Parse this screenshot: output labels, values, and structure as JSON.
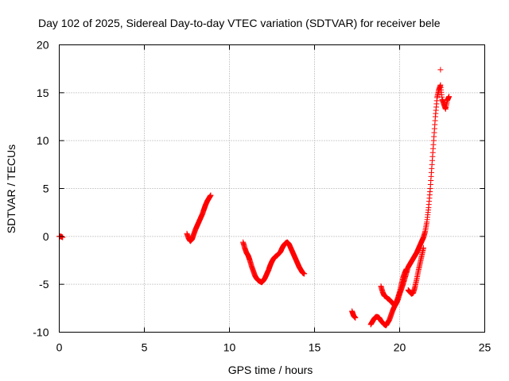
{
  "chart_data": {
    "type": "scatter",
    "title": "Day 102 of 2025, Sidereal Day-to-day VTEC variation (SDTVAR) for receiver bele",
    "xlabel": "GPS time / hours",
    "ylabel": "SDTVAR / TECUs",
    "xlim": [
      0,
      25
    ],
    "ylim": [
      -10,
      20
    ],
    "xticks": [
      0,
      5,
      10,
      15,
      20,
      25
    ],
    "yticks": [
      -10,
      -5,
      0,
      5,
      10,
      15,
      20
    ],
    "grid": true,
    "marker": "+",
    "color": "#ff0000",
    "series": [
      {
        "name": "SDTVAR",
        "segments": [
          [
            [
              0.0,
              0.0
            ],
            [
              0.1,
              0.0
            ],
            [
              0.2,
              -0.1
            ]
          ],
          [
            [
              7.5,
              0.3
            ],
            [
              7.6,
              -0.2
            ],
            [
              7.7,
              -0.5
            ],
            [
              7.8,
              -0.3
            ],
            [
              7.9,
              0.2
            ],
            [
              8.0,
              0.7
            ],
            [
              8.1,
              1.1
            ],
            [
              8.2,
              1.5
            ],
            [
              8.3,
              1.9
            ],
            [
              8.4,
              2.3
            ],
            [
              8.5,
              2.8
            ],
            [
              8.6,
              3.3
            ],
            [
              8.7,
              3.7
            ],
            [
              8.8,
              4.0
            ],
            [
              8.9,
              4.3
            ]
          ],
          [
            [
              10.8,
              -0.6
            ],
            [
              10.9,
              -1.2
            ],
            [
              11.0,
              -1.7
            ],
            [
              11.1,
              -2.0
            ],
            [
              11.2,
              -2.5
            ],
            [
              11.3,
              -3.1
            ],
            [
              11.4,
              -3.6
            ],
            [
              11.5,
              -4.1
            ],
            [
              11.6,
              -4.4
            ],
            [
              11.7,
              -4.6
            ],
            [
              11.8,
              -4.7
            ],
            [
              11.9,
              -4.8
            ],
            [
              12.0,
              -4.6
            ],
            [
              12.1,
              -4.3
            ],
            [
              12.2,
              -3.9
            ],
            [
              12.3,
              -3.5
            ],
            [
              12.4,
              -3.0
            ],
            [
              12.5,
              -2.6
            ],
            [
              12.6,
              -2.3
            ],
            [
              12.7,
              -2.1
            ],
            [
              12.8,
              -2.0
            ],
            [
              12.9,
              -1.8
            ],
            [
              13.0,
              -1.6
            ],
            [
              13.1,
              -1.2
            ],
            [
              13.2,
              -0.9
            ],
            [
              13.3,
              -0.7
            ],
            [
              13.4,
              -0.6
            ],
            [
              13.5,
              -0.8
            ],
            [
              13.6,
              -1.2
            ],
            [
              13.7,
              -1.6
            ],
            [
              13.8,
              -2.0
            ],
            [
              13.9,
              -2.4
            ],
            [
              14.0,
              -2.8
            ],
            [
              14.1,
              -3.2
            ],
            [
              14.2,
              -3.5
            ],
            [
              14.3,
              -3.8
            ],
            [
              14.4,
              -3.9
            ]
          ],
          [
            [
              17.2,
              -7.8
            ],
            [
              17.3,
              -8.3
            ],
            [
              17.4,
              -8.5
            ]
          ],
          [
            [
              18.3,
              -9.2
            ],
            [
              18.4,
              -8.9
            ],
            [
              18.5,
              -8.6
            ],
            [
              18.6,
              -8.4
            ],
            [
              18.7,
              -8.4
            ],
            [
              18.8,
              -8.5
            ],
            [
              18.9,
              -8.8
            ],
            [
              19.0,
              -9.0
            ],
            [
              19.1,
              -9.2
            ],
            [
              19.2,
              -9.3
            ],
            [
              19.3,
              -9.0
            ],
            [
              19.4,
              -8.7
            ],
            [
              19.5,
              -8.2
            ],
            [
              19.6,
              -7.7
            ],
            [
              19.7,
              -7.3
            ],
            [
              19.8,
              -7.0
            ],
            [
              19.9,
              -6.6
            ],
            [
              20.0,
              -6.0
            ],
            [
              20.1,
              -5.5
            ],
            [
              20.2,
              -5.0
            ],
            [
              20.3,
              -4.4
            ],
            [
              20.4,
              -3.8
            ],
            [
              20.5,
              -3.2
            ],
            [
              20.6,
              -2.9
            ],
            [
              20.7,
              -2.6
            ],
            [
              20.8,
              -2.3
            ],
            [
              20.9,
              -2.0
            ],
            [
              21.0,
              -1.7
            ],
            [
              21.1,
              -1.3
            ],
            [
              21.2,
              -0.9
            ],
            [
              21.3,
              -0.5
            ],
            [
              21.4,
              -0.1
            ],
            [
              21.5,
              0.5
            ],
            [
              21.6,
              1.5
            ],
            [
              21.7,
              3.0
            ],
            [
              21.8,
              5.0
            ],
            [
              21.9,
              7.5
            ],
            [
              22.0,
              10.0
            ],
            [
              22.1,
              12.5
            ],
            [
              22.2,
              14.5
            ],
            [
              22.3,
              15.3
            ],
            [
              22.4,
              15.8
            ],
            [
              22.5,
              14.3
            ],
            [
              22.6,
              13.8
            ],
            [
              22.7,
              13.3
            ],
            [
              22.8,
              14.2
            ],
            [
              22.9,
              14.6
            ]
          ],
          [
            [
              22.4,
              17.4
            ]
          ],
          [
            [
              18.9,
              -5.2
            ],
            [
              19.0,
              -5.8
            ],
            [
              19.1,
              -6.2
            ],
            [
              19.2,
              -6.3
            ],
            [
              19.3,
              -6.5
            ],
            [
              19.4,
              -6.6
            ],
            [
              19.5,
              -6.8
            ],
            [
              19.6,
              -7.0
            ],
            [
              19.7,
              -7.2
            ],
            [
              19.8,
              -6.9
            ],
            [
              19.9,
              -6.4
            ],
            [
              20.0,
              -5.8
            ],
            [
              20.1,
              -5.0
            ],
            [
              20.2,
              -4.3
            ],
            [
              20.3,
              -3.8
            ],
            [
              20.4,
              -3.4
            ]
          ],
          [
            [
              20.5,
              -5.6
            ],
            [
              20.6,
              -5.8
            ],
            [
              20.7,
              -6.0
            ],
            [
              20.8,
              -5.9
            ],
            [
              20.9,
              -5.3
            ],
            [
              21.0,
              -4.5
            ],
            [
              21.1,
              -3.6
            ],
            [
              21.2,
              -2.8
            ],
            [
              21.3,
              -2.0
            ],
            [
              21.4,
              -1.2
            ]
          ]
        ]
      }
    ]
  }
}
